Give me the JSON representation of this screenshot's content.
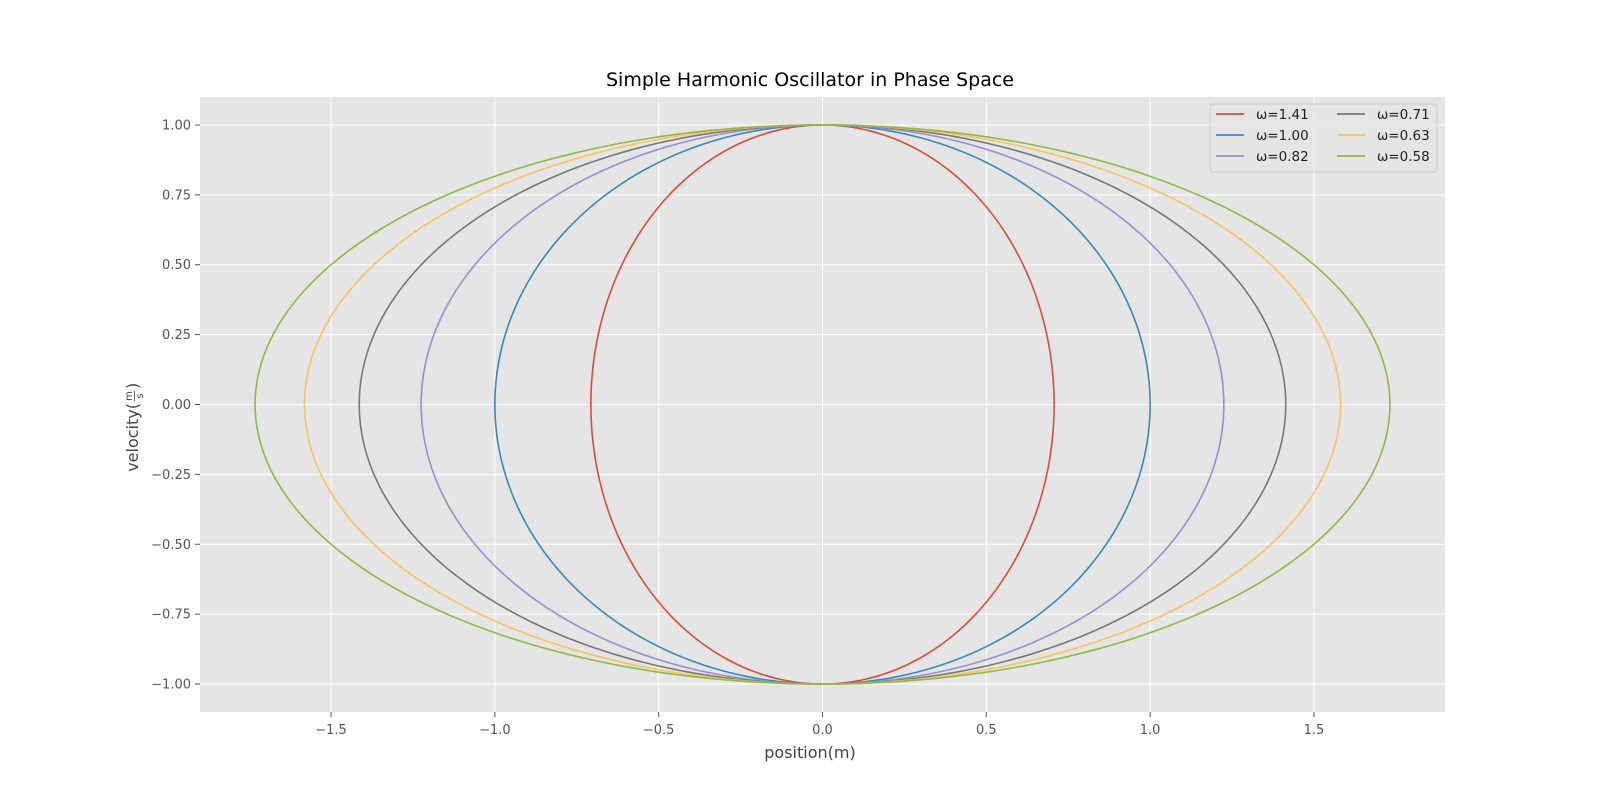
{
  "chart_data": {
    "type": "line",
    "title": "Simple Harmonic Oscillator in Phase Space",
    "xlabel": "position(m)",
    "ylabel_main": "velocity(",
    "ylabel_num": "m",
    "ylabel_den": "s",
    "ylabel_close": ")",
    "xlim": [
      -1.9,
      1.9
    ],
    "ylim": [
      -1.1,
      1.1
    ],
    "xticks": [
      -1.5,
      -1.0,
      -0.5,
      0.0,
      0.5,
      1.0,
      1.5
    ],
    "xtick_labels": [
      "−1.5",
      "−1.0",
      "−0.5",
      "0.0",
      "0.5",
      "1.0",
      "1.5"
    ],
    "yticks": [
      1.0,
      0.75,
      0.5,
      0.25,
      0.0,
      -0.25,
      -0.5,
      -0.75,
      -1.0
    ],
    "ytick_labels": [
      "1.00",
      "0.75",
      "0.50",
      "0.25",
      "0.00",
      "−0.25",
      "−0.50",
      "−0.75",
      "−1.00"
    ],
    "grid": true,
    "legend_position": "top-right",
    "legend_columns": 2,
    "series": [
      {
        "name": "ω=1.41",
        "omega": 1.41,
        "x_amplitude": 0.707,
        "v_amplitude": 1.0,
        "color": "#e24a33"
      },
      {
        "name": "ω=1.00",
        "omega": 1.0,
        "x_amplitude": 1.0,
        "v_amplitude": 1.0,
        "color": "#348abd"
      },
      {
        "name": "ω=0.82",
        "omega": 0.82,
        "x_amplitude": 1.225,
        "v_amplitude": 1.0,
        "color": "#988ed5"
      },
      {
        "name": "ω=0.71",
        "omega": 0.71,
        "x_amplitude": 1.414,
        "v_amplitude": 1.0,
        "color": "#777777"
      },
      {
        "name": "ω=0.63",
        "omega": 0.63,
        "x_amplitude": 1.581,
        "v_amplitude": 1.0,
        "color": "#fbc15e"
      },
      {
        "name": "ω=0.58",
        "omega": 0.58,
        "x_amplitude": 1.732,
        "v_amplitude": 1.0,
        "color": "#8eba42"
      }
    ],
    "colors": {
      "plot_background": "#e5e5e5",
      "grid": "#ffffff",
      "legend_background": "#e5e5e5",
      "legend_border": "#cccccc"
    }
  }
}
